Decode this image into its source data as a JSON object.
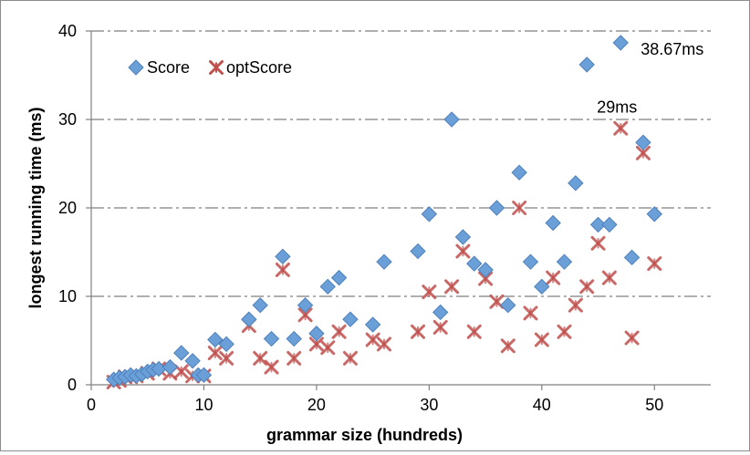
{
  "chart_data": {
    "type": "scatter",
    "title": "",
    "xlabel": "grammar size (hundreds)",
    "ylabel": "longest running time (ms)",
    "xlim": [
      0,
      55
    ],
    "ylim": [
      0,
      40
    ],
    "x_ticks": [
      0,
      10,
      20,
      30,
      40,
      50
    ],
    "y_ticks": [
      0,
      10,
      20,
      30,
      40
    ],
    "grid": "horizontal dash-dot",
    "legend": "top-left",
    "colors": {
      "score": "#6a9fd8",
      "optscore": "#c0504d"
    },
    "series": [
      {
        "name": "Score",
        "marker": "diamond",
        "points": [
          [
            2,
            0.6
          ],
          [
            2.5,
            0.8
          ],
          [
            3,
            0.9
          ],
          [
            3.5,
            1.1
          ],
          [
            4,
            1.0
          ],
          [
            4.5,
            1.2
          ],
          [
            5,
            1.5
          ],
          [
            5.5,
            1.7
          ],
          [
            6,
            1.8
          ],
          [
            7,
            2.0
          ],
          [
            8,
            3.6
          ],
          [
            9,
            2.7
          ],
          [
            9.5,
            1.1
          ],
          [
            10,
            1.1
          ],
          [
            11,
            5.1
          ],
          [
            12,
            4.6
          ],
          [
            14,
            7.4
          ],
          [
            15,
            9.0
          ],
          [
            16,
            5.2
          ],
          [
            17,
            14.5
          ],
          [
            18,
            5.2
          ],
          [
            19,
            9.0
          ],
          [
            20,
            5.8
          ],
          [
            21,
            11.1
          ],
          [
            22,
            12.1
          ],
          [
            23,
            7.4
          ],
          [
            25,
            6.8
          ],
          [
            26,
            13.9
          ],
          [
            29,
            15.1
          ],
          [
            30,
            19.3
          ],
          [
            31,
            8.2
          ],
          [
            32,
            30.0
          ],
          [
            33,
            16.7
          ],
          [
            34,
            13.7
          ],
          [
            35,
            13.0
          ],
          [
            36,
            20.0
          ],
          [
            37,
            9.0
          ],
          [
            38,
            24.0
          ],
          [
            39,
            13.9
          ],
          [
            40,
            11.1
          ],
          [
            41,
            18.3
          ],
          [
            42,
            13.9
          ],
          [
            43,
            22.8
          ],
          [
            44,
            36.2
          ],
          [
            45,
            18.1
          ],
          [
            46,
            18.1
          ],
          [
            47,
            38.67
          ],
          [
            48,
            14.4
          ],
          [
            49,
            27.4
          ],
          [
            50,
            19.3
          ]
        ]
      },
      {
        "name": "optScore",
        "marker": "star",
        "points": [
          [
            2,
            0.3
          ],
          [
            2.5,
            0.5
          ],
          [
            3,
            0.9
          ],
          [
            3.5,
            0.9
          ],
          [
            4,
            1.0
          ],
          [
            5,
            1.3
          ],
          [
            6,
            1.8
          ],
          [
            7,
            1.3
          ],
          [
            8,
            1.5
          ],
          [
            9,
            1.0
          ],
          [
            10,
            1.0
          ],
          [
            11,
            3.6
          ],
          [
            12,
            3.0
          ],
          [
            14,
            6.7
          ],
          [
            15,
            3.0
          ],
          [
            16,
            2.0
          ],
          [
            17,
            13.0
          ],
          [
            18,
            3.0
          ],
          [
            19,
            7.9
          ],
          [
            20,
            4.6
          ],
          [
            21,
            4.2
          ],
          [
            22,
            6.0
          ],
          [
            23,
            3.0
          ],
          [
            25,
            5.1
          ],
          [
            26,
            4.6
          ],
          [
            29,
            6.0
          ],
          [
            30,
            10.5
          ],
          [
            31,
            6.5
          ],
          [
            32,
            11.1
          ],
          [
            33,
            15.1
          ],
          [
            34,
            6.0
          ],
          [
            35,
            12.0
          ],
          [
            36,
            9.4
          ],
          [
            37,
            4.4
          ],
          [
            38,
            20.0
          ],
          [
            39,
            8.1
          ],
          [
            40,
            5.1
          ],
          [
            41,
            12.1
          ],
          [
            42,
            6.0
          ],
          [
            43,
            9.0
          ],
          [
            44,
            11.1
          ],
          [
            45,
            16.0
          ],
          [
            46,
            12.1
          ],
          [
            47,
            29.0
          ],
          [
            48,
            5.3
          ],
          [
            49,
            26.2
          ],
          [
            50,
            13.7
          ]
        ]
      }
    ],
    "annotations": [
      {
        "text": "38.67ms",
        "x": 47,
        "y": 38.67
      },
      {
        "text": "29ms",
        "x": 47,
        "y": 29
      }
    ]
  }
}
